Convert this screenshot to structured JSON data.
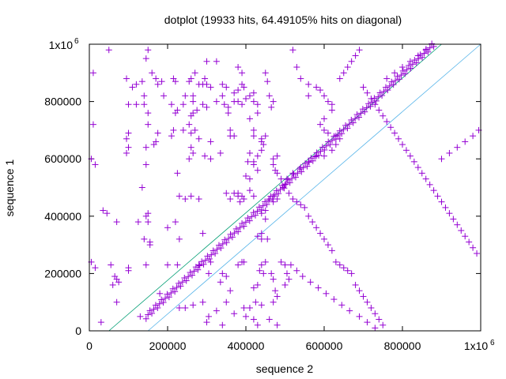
{
  "chart_data": {
    "type": "scatter",
    "title": "dotplot (19933 hits, 64.49105% hits on diagonal)",
    "xlabel": "sequence 2",
    "ylabel": "sequence 1",
    "xlim": [
      0,
      1000000
    ],
    "ylim": [
      0,
      1000000
    ],
    "x_ticks": [
      "0",
      "200000",
      "400000",
      "600000",
      "800000",
      "1x10"
    ],
    "y_ticks": [
      "0",
      "200000",
      "400000",
      "600000",
      "800000",
      "1x10"
    ],
    "max_tick_exponent": "6",
    "grid": false,
    "marker": "+",
    "colors": {
      "points": "#9400d3",
      "upper_band": "#009e73",
      "lower_band": "#56b4e9",
      "axis": "#000000"
    },
    "bands": [
      {
        "x": [
          50000,
          900000
        ],
        "y": [
          0,
          1000000
        ]
      },
      {
        "x": [
          150000,
          1000000
        ],
        "y": [
          0,
          1000000
        ]
      }
    ],
    "diagonal": {
      "x": [
        145000,
        880000
      ],
      "y": [
        50000,
        1000000
      ]
    },
    "points": [
      [
        10000,
        900000
      ],
      [
        10000,
        720000
      ],
      [
        30000,
        30000
      ],
      [
        5000,
        600000
      ],
      [
        15000,
        580000
      ],
      [
        50000,
        980000
      ],
      [
        60000,
        160000
      ],
      [
        70000,
        100000
      ],
      [
        65000,
        190000
      ],
      [
        70000,
        180000
      ],
      [
        75000,
        170000
      ],
      [
        35000,
        420000
      ],
      [
        45000,
        410000
      ],
      [
        70000,
        380000
      ],
      [
        55000,
        230000
      ],
      [
        5000,
        240000
      ],
      [
        15000,
        220000
      ],
      [
        95000,
        880000
      ],
      [
        110000,
        850000
      ],
      [
        120000,
        860000
      ],
      [
        100000,
        790000
      ],
      [
        120000,
        790000
      ],
      [
        140000,
        790000
      ],
      [
        95000,
        620000
      ],
      [
        100000,
        690000
      ],
      [
        95000,
        670000
      ],
      [
        100000,
        640000
      ],
      [
        135000,
        500000
      ],
      [
        100000,
        220000
      ],
      [
        100000,
        210000
      ],
      [
        125000,
        380000
      ],
      [
        150000,
        980000
      ],
      [
        145000,
        950000
      ],
      [
        135000,
        870000
      ],
      [
        140000,
        820000
      ],
      [
        150000,
        760000
      ],
      [
        150000,
        720000
      ],
      [
        145000,
        640000
      ],
      [
        145000,
        580000
      ],
      [
        140000,
        320000
      ],
      [
        145000,
        230000
      ],
      [
        155000,
        310000
      ],
      [
        145000,
        400000
      ],
      [
        150000,
        380000
      ],
      [
        150000,
        410000
      ],
      [
        155000,
        300000
      ],
      [
        130000,
        50000
      ],
      [
        160000,
        900000
      ],
      [
        170000,
        880000
      ],
      [
        175000,
        860000
      ],
      [
        175000,
        690000
      ],
      [
        170000,
        660000
      ],
      [
        165000,
        650000
      ],
      [
        185000,
        870000
      ],
      [
        215000,
        880000
      ],
      [
        220000,
        870000
      ],
      [
        190000,
        820000
      ],
      [
        210000,
        790000
      ],
      [
        225000,
        770000
      ],
      [
        215000,
        700000
      ],
      [
        210000,
        680000
      ],
      [
        225000,
        550000
      ],
      [
        230000,
        470000
      ],
      [
        220000,
        380000
      ],
      [
        200000,
        360000
      ],
      [
        230000,
        320000
      ],
      [
        200000,
        230000
      ],
      [
        225000,
        230000
      ],
      [
        180000,
        130000
      ],
      [
        230000,
        80000
      ],
      [
        220000,
        760000
      ],
      [
        240000,
        790000
      ],
      [
        240000,
        700000
      ],
      [
        255000,
        720000
      ],
      [
        260000,
        690000
      ],
      [
        260000,
        640000
      ],
      [
        255000,
        600000
      ],
      [
        245000,
        460000
      ],
      [
        260000,
        470000
      ],
      [
        280000,
        460000
      ],
      [
        245000,
        820000
      ],
      [
        265000,
        820000
      ],
      [
        265000,
        800000
      ],
      [
        265000,
        760000
      ],
      [
        260000,
        750000
      ],
      [
        275000,
        770000
      ],
      [
        270000,
        700000
      ],
      [
        265000,
        620000
      ],
      [
        255000,
        870000
      ],
      [
        260000,
        880000
      ],
      [
        270000,
        900000
      ],
      [
        280000,
        860000
      ],
      [
        290000,
        860000
      ],
      [
        295000,
        880000
      ],
      [
        300000,
        860000
      ],
      [
        290000,
        790000
      ],
      [
        300000,
        780000
      ],
      [
        280000,
        670000
      ],
      [
        295000,
        610000
      ],
      [
        310000,
        660000
      ],
      [
        290000,
        340000
      ],
      [
        310000,
        240000
      ],
      [
        280000,
        230000
      ],
      [
        305000,
        200000
      ],
      [
        290000,
        100000
      ],
      [
        300000,
        30000
      ],
      [
        305000,
        50000
      ],
      [
        265000,
        90000
      ],
      [
        245000,
        80000
      ],
      [
        310000,
        850000
      ],
      [
        325000,
        800000
      ],
      [
        335000,
        620000
      ],
      [
        340000,
        860000
      ],
      [
        340000,
        820000
      ],
      [
        350000,
        850000
      ],
      [
        345000,
        790000
      ],
      [
        355000,
        780000
      ],
      [
        355000,
        760000
      ],
      [
        360000,
        700000
      ],
      [
        360000,
        680000
      ],
      [
        370000,
        680000
      ],
      [
        370000,
        480000
      ],
      [
        380000,
        470000
      ],
      [
        350000,
        480000
      ],
      [
        360000,
        460000
      ],
      [
        380000,
        480000
      ],
      [
        390000,
        470000
      ],
      [
        385000,
        450000
      ],
      [
        395000,
        460000
      ],
      [
        390000,
        240000
      ],
      [
        380000,
        230000
      ],
      [
        395000,
        240000
      ],
      [
        340000,
        200000
      ],
      [
        350000,
        190000
      ],
      [
        335000,
        170000
      ],
      [
        360000,
        140000
      ],
      [
        350000,
        100000
      ],
      [
        340000,
        20000
      ],
      [
        325000,
        70000
      ],
      [
        370000,
        60000
      ],
      [
        395000,
        80000
      ],
      [
        310000,
        600000
      ],
      [
        300000,
        940000
      ],
      [
        325000,
        940000
      ],
      [
        380000,
        920000
      ],
      [
        390000,
        900000
      ],
      [
        390000,
        860000
      ],
      [
        395000,
        850000
      ],
      [
        380000,
        840000
      ],
      [
        370000,
        830000
      ],
      [
        370000,
        800000
      ],
      [
        380000,
        800000
      ],
      [
        390000,
        790000
      ],
      [
        400000,
        810000
      ],
      [
        410000,
        820000
      ],
      [
        420000,
        830000
      ],
      [
        420000,
        800000
      ],
      [
        430000,
        790000
      ],
      [
        430000,
        760000
      ],
      [
        410000,
        740000
      ],
      [
        420000,
        700000
      ],
      [
        420000,
        680000
      ],
      [
        440000,
        670000
      ],
      [
        450000,
        680000
      ],
      [
        440000,
        660000
      ],
      [
        445000,
        650000
      ],
      [
        440000,
        630000
      ],
      [
        430000,
        610000
      ],
      [
        410000,
        620000
      ],
      [
        405000,
        590000
      ],
      [
        420000,
        590000
      ],
      [
        420000,
        580000
      ],
      [
        430000,
        560000
      ],
      [
        400000,
        540000
      ],
      [
        410000,
        530000
      ],
      [
        410000,
        490000
      ],
      [
        420000,
        470000
      ],
      [
        440000,
        410000
      ],
      [
        450000,
        420000
      ],
      [
        450000,
        390000
      ],
      [
        440000,
        340000
      ],
      [
        430000,
        330000
      ],
      [
        440000,
        320000
      ],
      [
        455000,
        320000
      ],
      [
        450000,
        240000
      ],
      [
        440000,
        230000
      ],
      [
        445000,
        200000
      ],
      [
        435000,
        210000
      ],
      [
        430000,
        160000
      ],
      [
        420000,
        150000
      ],
      [
        425000,
        100000
      ],
      [
        440000,
        90000
      ],
      [
        410000,
        80000
      ],
      [
        400000,
        50000
      ],
      [
        420000,
        40000
      ],
      [
        430000,
        20000
      ],
      [
        450000,
        900000
      ],
      [
        455000,
        870000
      ],
      [
        460000,
        820000
      ],
      [
        470000,
        800000
      ],
      [
        465000,
        780000
      ],
      [
        470000,
        600000
      ],
      [
        480000,
        610000
      ],
      [
        470000,
        580000
      ],
      [
        475000,
        560000
      ],
      [
        480000,
        550000
      ],
      [
        490000,
        530000
      ],
      [
        500000,
        510000
      ],
      [
        495000,
        500000
      ],
      [
        460000,
        460000
      ],
      [
        470000,
        470000
      ],
      [
        470000,
        450000
      ],
      [
        480000,
        460000
      ],
      [
        465000,
        200000
      ],
      [
        470000,
        180000
      ],
      [
        475000,
        140000
      ],
      [
        480000,
        120000
      ],
      [
        470000,
        100000
      ],
      [
        460000,
        40000
      ],
      [
        480000,
        20000
      ],
      [
        490000,
        240000
      ],
      [
        500000,
        230000
      ],
      [
        505000,
        200000
      ],
      [
        510000,
        180000
      ],
      [
        500000,
        160000
      ],
      [
        520000,
        980000
      ],
      [
        530000,
        920000
      ],
      [
        540000,
        880000
      ],
      [
        560000,
        860000
      ],
      [
        580000,
        850000
      ],
      [
        590000,
        840000
      ],
      [
        560000,
        820000
      ],
      [
        600000,
        820000
      ],
      [
        610000,
        800000
      ],
      [
        620000,
        790000
      ],
      [
        620000,
        770000
      ],
      [
        600000,
        740000
      ],
      [
        590000,
        720000
      ],
      [
        600000,
        700000
      ],
      [
        610000,
        690000
      ],
      [
        630000,
        680000
      ],
      [
        640000,
        670000
      ],
      [
        630000,
        650000
      ],
      [
        620000,
        630000
      ],
      [
        600000,
        610000
      ],
      [
        580000,
        610000
      ],
      [
        560000,
        590000
      ],
      [
        540000,
        570000
      ],
      [
        520000,
        550000
      ],
      [
        505000,
        530000
      ],
      [
        510000,
        480000
      ],
      [
        520000,
        460000
      ],
      [
        530000,
        450000
      ],
      [
        540000,
        440000
      ],
      [
        550000,
        430000
      ],
      [
        560000,
        400000
      ],
      [
        570000,
        380000
      ],
      [
        580000,
        360000
      ],
      [
        590000,
        340000
      ],
      [
        600000,
        320000
      ],
      [
        610000,
        300000
      ],
      [
        620000,
        280000
      ],
      [
        630000,
        240000
      ],
      [
        640000,
        230000
      ],
      [
        650000,
        220000
      ],
      [
        660000,
        210000
      ],
      [
        670000,
        200000
      ],
      [
        680000,
        160000
      ],
      [
        690000,
        140000
      ],
      [
        700000,
        120000
      ],
      [
        710000,
        100000
      ],
      [
        720000,
        80000
      ],
      [
        730000,
        60000
      ],
      [
        740000,
        40000
      ],
      [
        750000,
        20000
      ],
      [
        515000,
        230000
      ],
      [
        530000,
        210000
      ],
      [
        545000,
        190000
      ],
      [
        565000,
        170000
      ],
      [
        585000,
        150000
      ],
      [
        605000,
        130000
      ],
      [
        625000,
        110000
      ],
      [
        645000,
        90000
      ],
      [
        665000,
        70000
      ],
      [
        690000,
        50000
      ],
      [
        710000,
        30000
      ],
      [
        730000,
        10000
      ],
      [
        640000,
        880000
      ],
      [
        650000,
        900000
      ],
      [
        660000,
        920000
      ],
      [
        670000,
        940000
      ],
      [
        680000,
        960000
      ],
      [
        690000,
        980000
      ],
      [
        700000,
        850000
      ],
      [
        710000,
        830000
      ],
      [
        720000,
        810000
      ],
      [
        730000,
        790000
      ],
      [
        740000,
        770000
      ],
      [
        750000,
        750000
      ],
      [
        760000,
        730000
      ],
      [
        770000,
        710000
      ],
      [
        780000,
        690000
      ],
      [
        790000,
        670000
      ],
      [
        800000,
        650000
      ],
      [
        810000,
        630000
      ],
      [
        820000,
        610000
      ],
      [
        830000,
        590000
      ],
      [
        840000,
        570000
      ],
      [
        850000,
        550000
      ],
      [
        860000,
        530000
      ],
      [
        870000,
        510000
      ],
      [
        880000,
        490000
      ],
      [
        890000,
        470000
      ],
      [
        900000,
        450000
      ],
      [
        910000,
        430000
      ],
      [
        920000,
        410000
      ],
      [
        930000,
        390000
      ],
      [
        940000,
        370000
      ],
      [
        950000,
        350000
      ],
      [
        960000,
        330000
      ],
      [
        970000,
        310000
      ],
      [
        980000,
        290000
      ],
      [
        990000,
        270000
      ],
      [
        760000,
        880000
      ],
      [
        780000,
        900000
      ],
      [
        800000,
        920000
      ],
      [
        820000,
        940000
      ],
      [
        840000,
        960000
      ],
      [
        860000,
        980000
      ],
      [
        900000,
        600000
      ],
      [
        920000,
        620000
      ],
      [
        940000,
        640000
      ],
      [
        960000,
        660000
      ],
      [
        980000,
        680000
      ],
      [
        995000,
        700000
      ]
    ]
  }
}
